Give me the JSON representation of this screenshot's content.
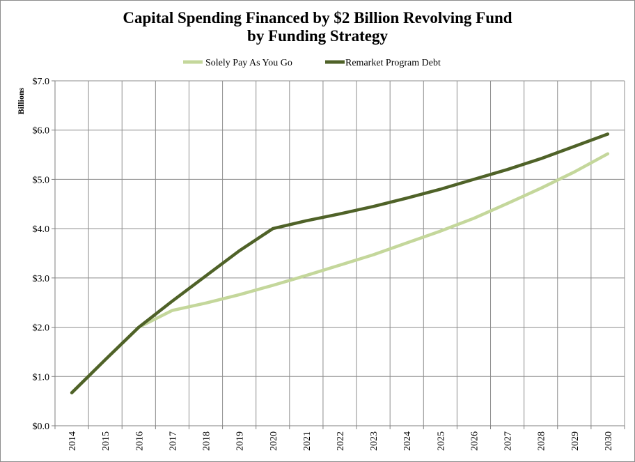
{
  "chart_data": {
    "type": "line",
    "title": "Capital Spending Financed by $2 Billion Revolving Fund",
    "subtitle": "by Funding Strategy",
    "xlabel": "",
    "ylabel": "Billions",
    "x": [
      "2014",
      "2015",
      "2016",
      "2017",
      "2018",
      "2019",
      "2020",
      "2021",
      "2022",
      "2023",
      "2024",
      "2025",
      "2026",
      "2027",
      "2028",
      "2029",
      "2030"
    ],
    "ylim": [
      0,
      7
    ],
    "y_ticks": [
      "$0.0",
      "$1.0",
      "$2.0",
      "$3.0",
      "$4.0",
      "$5.0",
      "$6.0",
      "$7.0"
    ],
    "grid": true,
    "legend_position": "top",
    "series": [
      {
        "name": "Solely Pay As You Go",
        "color": "#c4d79b",
        "values": [
          0.67,
          1.34,
          2.0,
          2.34,
          2.49,
          2.66,
          2.85,
          3.05,
          3.26,
          3.47,
          3.71,
          3.95,
          4.21,
          4.51,
          4.82,
          5.15,
          5.52
        ]
      },
      {
        "name": "Remarket Program Debt",
        "color": "#4f6228",
        "values": [
          0.67,
          1.34,
          2.0,
          2.53,
          3.04,
          3.55,
          4.0,
          4.16,
          4.3,
          4.45,
          4.62,
          4.8,
          5.0,
          5.2,
          5.42,
          5.67,
          5.92
        ]
      }
    ]
  }
}
